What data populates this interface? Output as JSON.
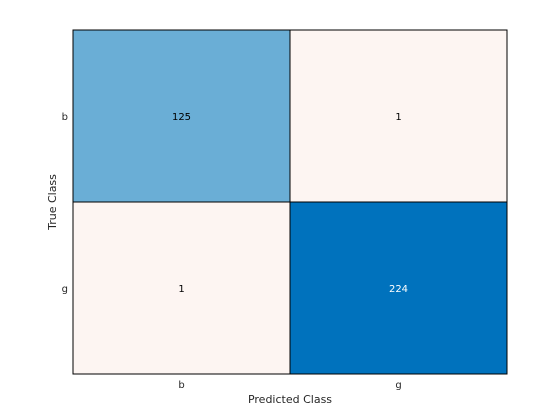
{
  "chart_data": {
    "type": "heatmap",
    "title": "",
    "xlabel": "Predicted Class",
    "ylabel": "True Class",
    "row_labels": [
      "b",
      "g"
    ],
    "col_labels": [
      "b",
      "g"
    ],
    "values": [
      [
        125,
        1
      ],
      [
        1,
        224
      ]
    ],
    "colors": {
      "diagonal_low": "#6aaed6",
      "diagonal_high": "#0072bd",
      "off_diagonal": "#fdf5f2",
      "border": "#000000",
      "text_dark": "#000000",
      "text_light": "#ffffff"
    }
  }
}
